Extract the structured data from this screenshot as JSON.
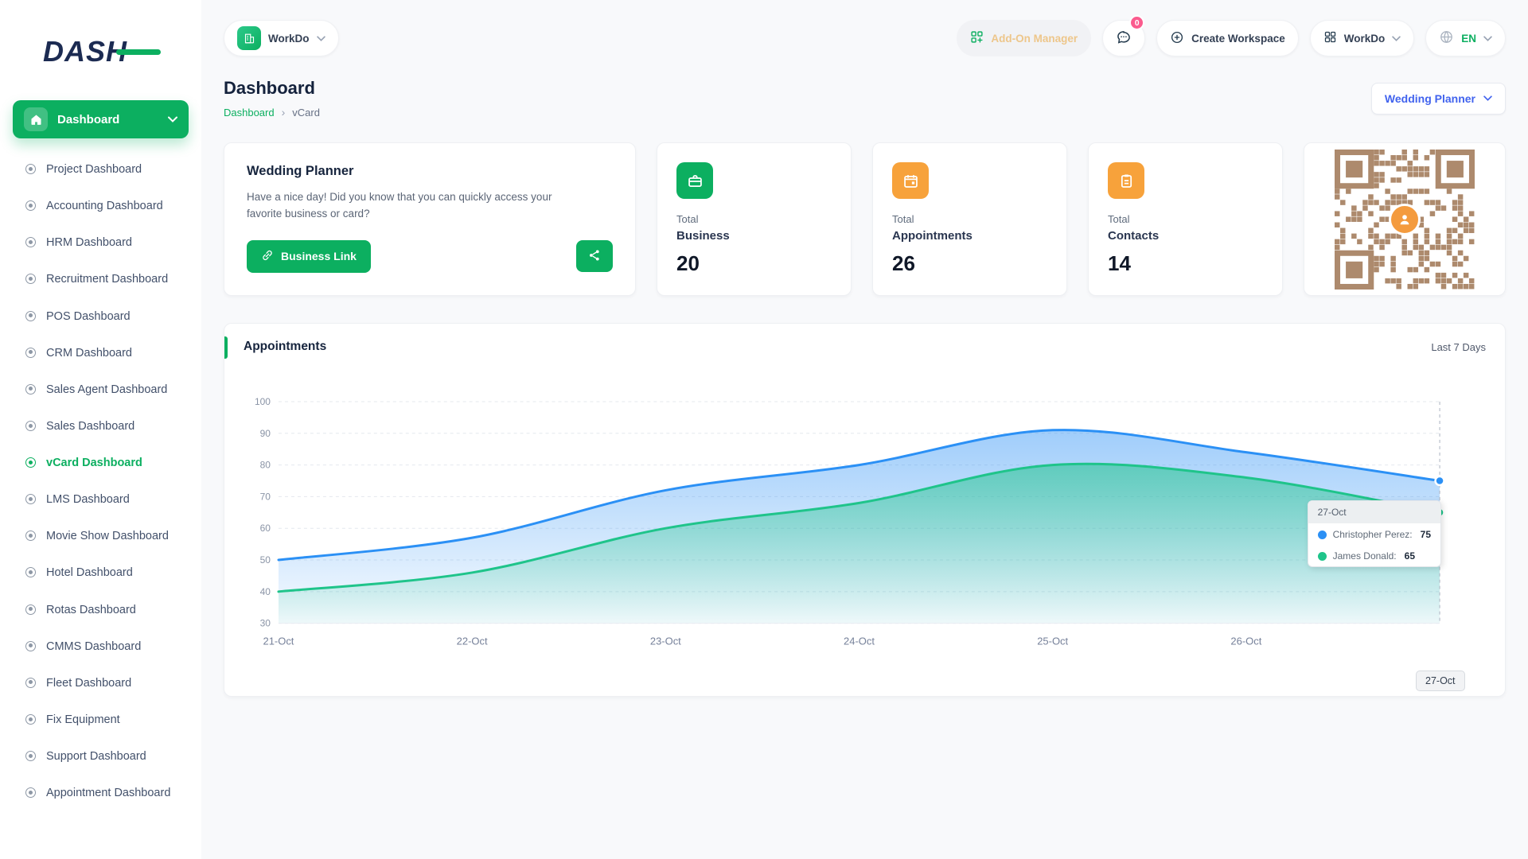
{
  "brand": {
    "logo_text": "DASH",
    "accent": "#0caf60"
  },
  "sidebar": {
    "main_item": "Dashboard",
    "active_item": "vCard Dashboard",
    "items": [
      "Project Dashboard",
      "Accounting Dashboard",
      "HRM Dashboard",
      "Recruitment Dashboard",
      "POS Dashboard",
      "CRM Dashboard",
      "Sales Agent Dashboard",
      "Sales Dashboard",
      "vCard Dashboard",
      "LMS Dashboard",
      "Movie Show Dashboard",
      "Hotel Dashboard",
      "Rotas Dashboard",
      "CMMS Dashboard",
      "Fleet Dashboard",
      "Fix Equipment",
      "Support Dashboard",
      "Appointment Dashboard"
    ]
  },
  "topbar": {
    "workspace": "WorkDo",
    "addon_manager": "Add-On Manager",
    "chat_badge": "0",
    "create_workspace": "Create Workspace",
    "apps": "WorkDo",
    "language": "EN"
  },
  "page": {
    "title": "Dashboard",
    "breadcrumb_root": "Dashboard",
    "breadcrumb_current": "vCard",
    "business_selector": "Wedding Planner"
  },
  "welcome": {
    "title": "Wedding Planner",
    "message": "Have a nice day! Did you know that you can quickly access your favorite business or card?",
    "business_link_label": "Business Link"
  },
  "stats": [
    {
      "label_top": "Total",
      "label": "Business",
      "value": "20",
      "color": "#0caf60"
    },
    {
      "label_top": "Total",
      "label": "Appointments",
      "value": "26",
      "color": "#f7a23b"
    },
    {
      "label_top": "Total",
      "label": "Contacts",
      "value": "14",
      "color": "#f7a23b"
    }
  ],
  "qr": {
    "color": "#ad8a6d"
  },
  "chart": {
    "title": "Appointments",
    "range": "Last 7 Days"
  },
  "chart_data": {
    "type": "area",
    "title": "Appointments",
    "x": [
      "21-Oct",
      "22-Oct",
      "23-Oct",
      "24-Oct",
      "25-Oct",
      "26-Oct",
      "27-Oct"
    ],
    "series": [
      {
        "name": "Christopher Perez",
        "color": "#2b90f5",
        "values": [
          50,
          57,
          72,
          80,
          91,
          84,
          75
        ]
      },
      {
        "name": "James Donald",
        "color": "#1fc48a",
        "values": [
          40,
          46,
          60,
          68,
          80,
          76,
          65
        ]
      }
    ],
    "ylim": [
      30,
      100
    ],
    "yticks": [
      30,
      40,
      50,
      60,
      70,
      80,
      90,
      100
    ],
    "grid": "dashed-horizontal",
    "legend": "none"
  },
  "chart_tooltip": {
    "title": "27-Oct",
    "rows": [
      {
        "label": "Christopher Perez:",
        "value": "75"
      },
      {
        "label": "James Donald:",
        "value": "65"
      }
    ],
    "xaxis_label": "27-Oct"
  }
}
